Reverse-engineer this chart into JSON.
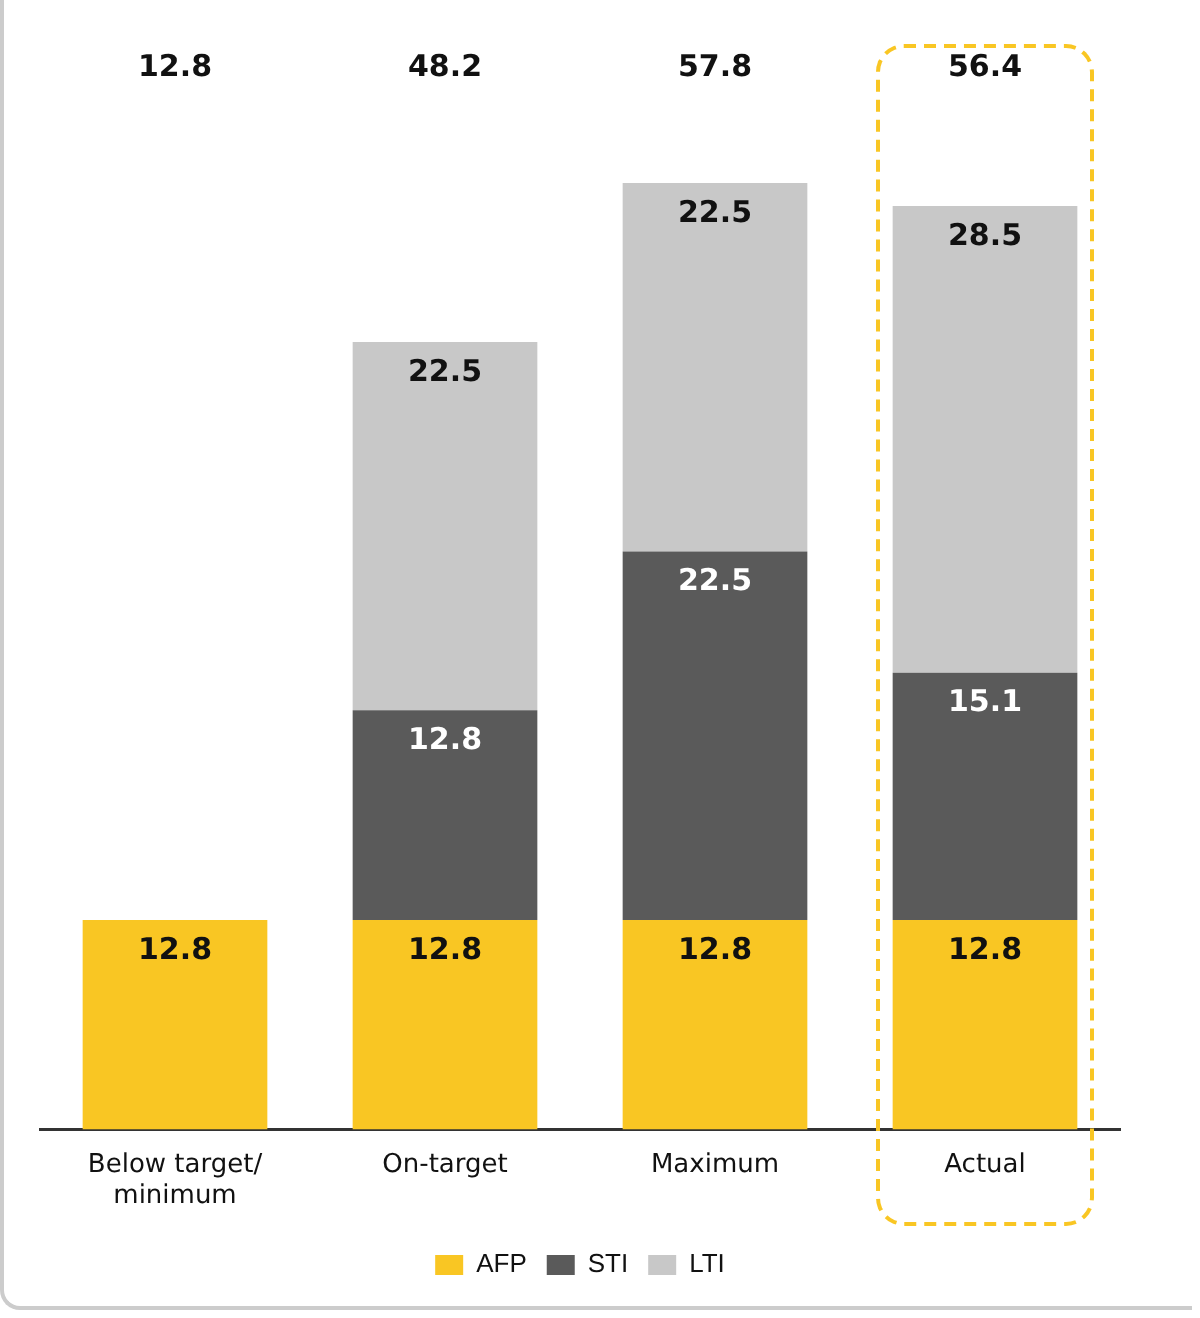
{
  "chart_data": {
    "type": "bar",
    "stacked": true,
    "categories": [
      "Below target/ minimum",
      "On-target",
      "Maximum",
      "Actual"
    ],
    "series": [
      {
        "name": "AFP",
        "color": "#f9c623",
        "values": [
          12.8,
          12.8,
          12.8,
          12.8
        ]
      },
      {
        "name": "STI",
        "color": "#5a5a5a",
        "values": [
          null,
          12.8,
          22.5,
          15.1
        ]
      },
      {
        "name": "LTI",
        "color": "#c8c8c8",
        "values": [
          null,
          22.5,
          22.5,
          28.5
        ]
      }
    ],
    "data_labels": true,
    "annotations": [
      "12.8",
      "48.2",
      "57.8",
      "56.4"
    ],
    "legend": "bottom",
    "grid": false
  }
}
